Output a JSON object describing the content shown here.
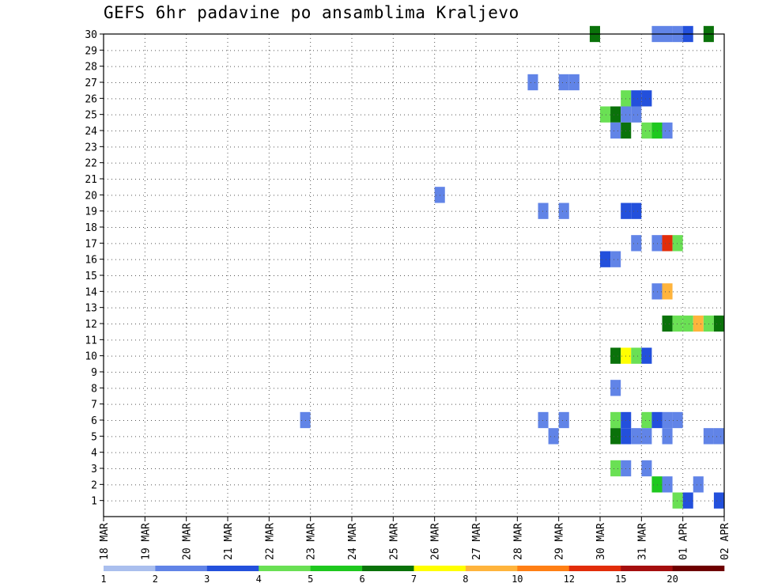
{
  "chart_data": {
    "type": "heatmap",
    "title": "GEFS 6hr padavine po ansamblima Kraljevo",
    "x_tick_labels": [
      "18 MAR",
      "19 MAR",
      "20 MAR",
      "21 MAR",
      "22 MAR",
      "23 MAR",
      "24 MAR",
      "25 MAR",
      "26 MAR",
      "27 MAR",
      "28 MAR",
      "29 MAR",
      "30 MAR",
      "31 MAR",
      "01 APR",
      "02 APR"
    ],
    "x_range_days": [
      0,
      15
    ],
    "x_step_hours": 6,
    "y_tick_labels": [
      "1",
      "2",
      "3",
      "4",
      "5",
      "6",
      "7",
      "8",
      "9",
      "10",
      "11",
      "12",
      "13",
      "14",
      "15",
      "16",
      "17",
      "18",
      "19",
      "20",
      "21",
      "22",
      "23",
      "24",
      "25",
      "26",
      "27",
      "28",
      "29",
      "30"
    ],
    "y_range": [
      0,
      30
    ],
    "colorbar": {
      "levels": [
        1,
        2,
        3,
        4,
        5,
        6,
        7,
        8,
        10,
        12,
        15,
        20
      ],
      "labels": [
        "1",
        "2",
        "3",
        "4",
        "5",
        "6",
        "7",
        "8",
        "10",
        "12",
        "15",
        "20"
      ],
      "colors": [
        "#aabfee",
        "#6184e7",
        "#2350dc",
        "#6ae054",
        "#1ec81e",
        "#0a720a",
        "#ffff00",
        "#ffb43c",
        "#ff7f14",
        "#e22d0a",
        "#a50e0e",
        "#6e0000"
      ]
    },
    "cells": [
      [
        30,
        28.75,
        5
      ],
      [
        30,
        30.5,
        1
      ],
      [
        30,
        30.75,
        1
      ],
      [
        30,
        30.25,
        1
      ],
      [
        30,
        31,
        2
      ],
      [
        30,
        31.5,
        5
      ],
      [
        30,
        32,
        6
      ],
      [
        30,
        32.25,
        2
      ],
      [
        30,
        32,
        1
      ],
      [
        30,
        33.25,
        2
      ],
      [
        30,
        33.5,
        3
      ],
      [
        30,
        34.5,
        1
      ],
      [
        29,
        32.75,
        5
      ],
      [
        29,
        35.75,
        1
      ],
      [
        29,
        36,
        1
      ],
      [
        29,
        36.75,
        1
      ],
      [
        28,
        33,
        5
      ],
      [
        28,
        33.5,
        1
      ],
      [
        28,
        34,
        1
      ],
      [
        28,
        34.25,
        1
      ],
      [
        27,
        27.25,
        1
      ],
      [
        27,
        28,
        1
      ],
      [
        27,
        28.25,
        1
      ],
      [
        27,
        34,
        1
      ],
      [
        27,
        34.25,
        2
      ],
      [
        27,
        34.5,
        2
      ],
      [
        27,
        35.5,
        1
      ],
      [
        27,
        35.75,
        1
      ],
      [
        27,
        36,
        2
      ],
      [
        27,
        36.25,
        3
      ],
      [
        26,
        29.5,
        3
      ],
      [
        26,
        29.75,
        2
      ],
      [
        26,
        30,
        2
      ],
      [
        26,
        34,
        5
      ],
      [
        26,
        34.25,
        8
      ],
      [
        26,
        34.5,
        10
      ],
      [
        26,
        34.75,
        10
      ],
      [
        26,
        35,
        5
      ],
      [
        26,
        35.25,
        1
      ],
      [
        26,
        35.5,
        2
      ],
      [
        25,
        29,
        3
      ],
      [
        25,
        29.25,
        5
      ],
      [
        25,
        29.5,
        1
      ],
      [
        25,
        29.75,
        1
      ],
      [
        24,
        29.25,
        1
      ],
      [
        24,
        29.5,
        5
      ],
      [
        24,
        30,
        3
      ],
      [
        24,
        30.25,
        4
      ],
      [
        24,
        30.5,
        1
      ],
      [
        24,
        36,
        1
      ],
      [
        23,
        36,
        1
      ],
      [
        22,
        35.75,
        1
      ],
      [
        22,
        36,
        1
      ],
      [
        22,
        36,
        3
      ],
      [
        22,
        36.25,
        5
      ],
      [
        22,
        36.5,
        1
      ],
      [
        22,
        36.75,
        5
      ],
      [
        22,
        37,
        6
      ],
      [
        22,
        37.25,
        2
      ],
      [
        21,
        32.5,
        1
      ],
      [
        21,
        32.75,
        1
      ],
      [
        21,
        33,
        7
      ],
      [
        21,
        33.25,
        7
      ],
      [
        21,
        33.5,
        8
      ],
      [
        21,
        33.75,
        7
      ],
      [
        21,
        34,
        6
      ],
      [
        21,
        34.25,
        2
      ],
      [
        21,
        35.75,
        3
      ],
      [
        21,
        36,
        7
      ],
      [
        21,
        36.25,
        2
      ],
      [
        21,
        36.5,
        4
      ],
      [
        21,
        36.75,
        3
      ],
      [
        20,
        25,
        1
      ],
      [
        20,
        33.75,
        1
      ],
      [
        20,
        34,
        5
      ],
      [
        20,
        34.25,
        2
      ],
      [
        20,
        34.5,
        1
      ],
      [
        20,
        34,
        6
      ],
      [
        19,
        27.5,
        1
      ],
      [
        19,
        28,
        1
      ],
      [
        19,
        29.5,
        2
      ],
      [
        19,
        29.75,
        2
      ],
      [
        18,
        32.25,
        3
      ],
      [
        18,
        32.5,
        2
      ],
      [
        18,
        32.75,
        1
      ],
      [
        18,
        33,
        2
      ],
      [
        18,
        33.25,
        3
      ],
      [
        18,
        33.5,
        1
      ],
      [
        17,
        29.75,
        1
      ],
      [
        17,
        30.25,
        1
      ],
      [
        17,
        30.5,
        9
      ],
      [
        17,
        30.75,
        3
      ],
      [
        17,
        35.5,
        4
      ],
      [
        17,
        36.75,
        1
      ],
      [
        16,
        29,
        2
      ],
      [
        16,
        29.25,
        1
      ],
      [
        16,
        36,
        1
      ],
      [
        15,
        32.5,
        3
      ],
      [
        15,
        33.75,
        1
      ],
      [
        15,
        35,
        1
      ],
      [
        15,
        35.25,
        1
      ],
      [
        15,
        35.5,
        1
      ],
      [
        14,
        30.25,
        1
      ],
      [
        14,
        30.5,
        7
      ],
      [
        14,
        33.75,
        1
      ],
      [
        14,
        34,
        3
      ],
      [
        14,
        34.25,
        6
      ],
      [
        14,
        35.5,
        1
      ],
      [
        14,
        36,
        1
      ],
      [
        14,
        37,
        3
      ],
      [
        12,
        30.5,
        5
      ],
      [
        12,
        30.75,
        3
      ],
      [
        12,
        31,
        3
      ],
      [
        12,
        31.25,
        7
      ],
      [
        12,
        31.5,
        3
      ],
      [
        12,
        31.75,
        5
      ],
      [
        12,
        32,
        5
      ],
      [
        12,
        32.25,
        2
      ],
      [
        12,
        35.25,
        1
      ],
      [
        12,
        35.5,
        1
      ],
      [
        12,
        35.5,
        5
      ],
      [
        12,
        35.75,
        1
      ],
      [
        12,
        36,
        1
      ],
      [
        10,
        29.25,
        5
      ],
      [
        10,
        29.5,
        6
      ],
      [
        10,
        29.75,
        3
      ],
      [
        10,
        30,
        2
      ],
      [
        9,
        32.5,
        2
      ],
      [
        9,
        36,
        5
      ],
      [
        9,
        36.25,
        1
      ],
      [
        9,
        37,
        2
      ],
      [
        9,
        37.25,
        2
      ],
      [
        8,
        29.25,
        1
      ],
      [
        8,
        32.75,
        1
      ],
      [
        8,
        34.5,
        1
      ],
      [
        8,
        34.75,
        1
      ],
      [
        6,
        21.75,
        1
      ],
      [
        6,
        27.5,
        1
      ],
      [
        6,
        28,
        1
      ],
      [
        6,
        29.25,
        3
      ],
      [
        6,
        29.5,
        2
      ],
      [
        6,
        30,
        3
      ],
      [
        6,
        30.25,
        2
      ],
      [
        6,
        30.5,
        1
      ],
      [
        6,
        30.75,
        1
      ],
      [
        6,
        32.5,
        2
      ],
      [
        6,
        32.75,
        2
      ],
      [
        6,
        33,
        2
      ],
      [
        6,
        33.25,
        2
      ],
      [
        6,
        33.5,
        2
      ],
      [
        6,
        33.75,
        2
      ],
      [
        6,
        36,
        1
      ],
      [
        5,
        27.75,
        1
      ],
      [
        5,
        29.25,
        5
      ],
      [
        5,
        29.5,
        2
      ],
      [
        5,
        29.75,
        1
      ],
      [
        5,
        30,
        1
      ],
      [
        5,
        30.5,
        1
      ],
      [
        5,
        31.5,
        1
      ],
      [
        5,
        31.75,
        1
      ],
      [
        5,
        33.25,
        1
      ],
      [
        5,
        34,
        2
      ],
      [
        5,
        34.75,
        1
      ],
      [
        5,
        35.25,
        7
      ],
      [
        5,
        35.5,
        2
      ],
      [
        5,
        35.75,
        5
      ],
      [
        5,
        36.25,
        1
      ],
      [
        4,
        33.25,
        1
      ],
      [
        4,
        33.5,
        1
      ],
      [
        4,
        36.5,
        8
      ],
      [
        4,
        36.75,
        4
      ],
      [
        4,
        37,
        4
      ],
      [
        4,
        37.25,
        12
      ],
      [
        4,
        37.5,
        6
      ],
      [
        3,
        29.25,
        3
      ],
      [
        3,
        29.5,
        1
      ],
      [
        3,
        30,
        1
      ],
      [
        3,
        32.25,
        1
      ],
      [
        3,
        32.5,
        6
      ],
      [
        3,
        32.75,
        1
      ],
      [
        3,
        33.5,
        2
      ],
      [
        3,
        33.75,
        4
      ],
      [
        3,
        34,
        2
      ],
      [
        3,
        35,
        3
      ],
      [
        3,
        35.25,
        2
      ],
      [
        3,
        35.5,
        6
      ],
      [
        3,
        35.75,
        2
      ],
      [
        3,
        36,
        2
      ],
      [
        2,
        30.25,
        4
      ],
      [
        2,
        30.5,
        1
      ],
      [
        2,
        31.25,
        1
      ],
      [
        1,
        30.75,
        3
      ],
      [
        1,
        31,
        2
      ],
      [
        1,
        31.75,
        2
      ],
      [
        1,
        35.5,
        2
      ],
      [
        1,
        35.75,
        1
      ],
      [
        1,
        36,
        1
      ],
      [
        1,
        36.25,
        1
      ],
      [
        1,
        36.75,
        2
      ],
      [
        1,
        37,
        1
      ],
      [
        0,
        35.5,
        3
      ],
      [
        0,
        35.75,
        11
      ],
      [
        0,
        36,
        2
      ]
    ]
  }
}
